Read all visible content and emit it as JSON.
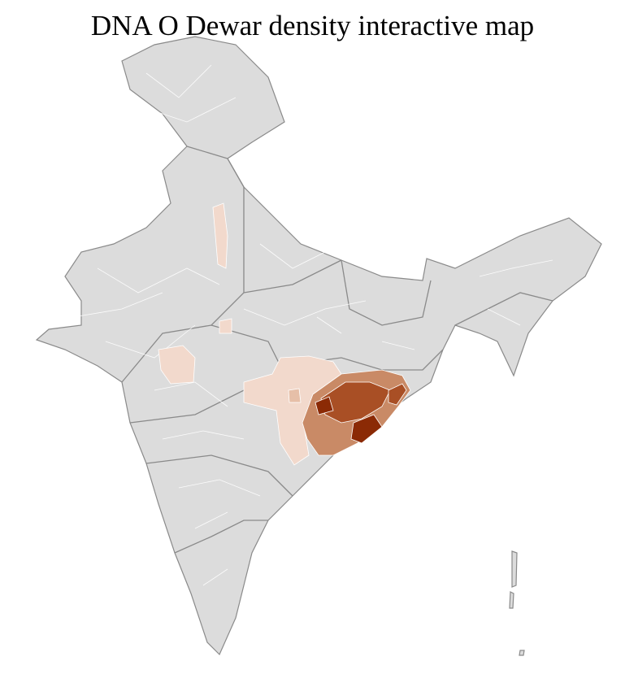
{
  "title": "DNA O Dewar density interactive map",
  "colors": {
    "base": "#dcdcdc",
    "district_border": "#ffffff",
    "state_border": "#8a8a8a",
    "density_very_low": "#f2d9cc",
    "density_low": "#e6bfa8",
    "density_mid": "#c98a66",
    "density_high": "#a94f25",
    "density_max": "#8b2a05"
  }
}
